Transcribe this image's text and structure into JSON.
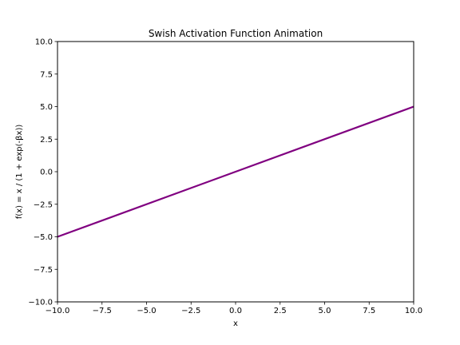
{
  "chart_data": {
    "type": "line",
    "title": "Swish Activation Function Animation",
    "xlabel": "x",
    "ylabel": "f(x) = x / (1 + exp(-βx))",
    "xlim": [
      -10,
      10
    ],
    "ylim": [
      -10,
      10
    ],
    "x_ticks": [
      -10,
      -7.5,
      -5,
      -2.5,
      0,
      2.5,
      5,
      7.5,
      10
    ],
    "y_ticks": [
      -10,
      -7.5,
      -5,
      -2.5,
      0,
      2.5,
      5,
      7.5,
      10
    ],
    "x_tick_labels": [
      "−10.0",
      "−7.5",
      "−5.0",
      "−2.5",
      "0.0",
      "2.5",
      "5.0",
      "7.5",
      "10.0"
    ],
    "y_tick_labels": [
      "−10.0",
      "−7.5",
      "−5.0",
      "−2.5",
      "0.0",
      "2.5",
      "5.0",
      "7.5",
      "10.0"
    ],
    "grid": false,
    "series": [
      {
        "color": "#800080",
        "x": [
          -10,
          10
        ],
        "y": [
          -5,
          5
        ]
      }
    ]
  }
}
